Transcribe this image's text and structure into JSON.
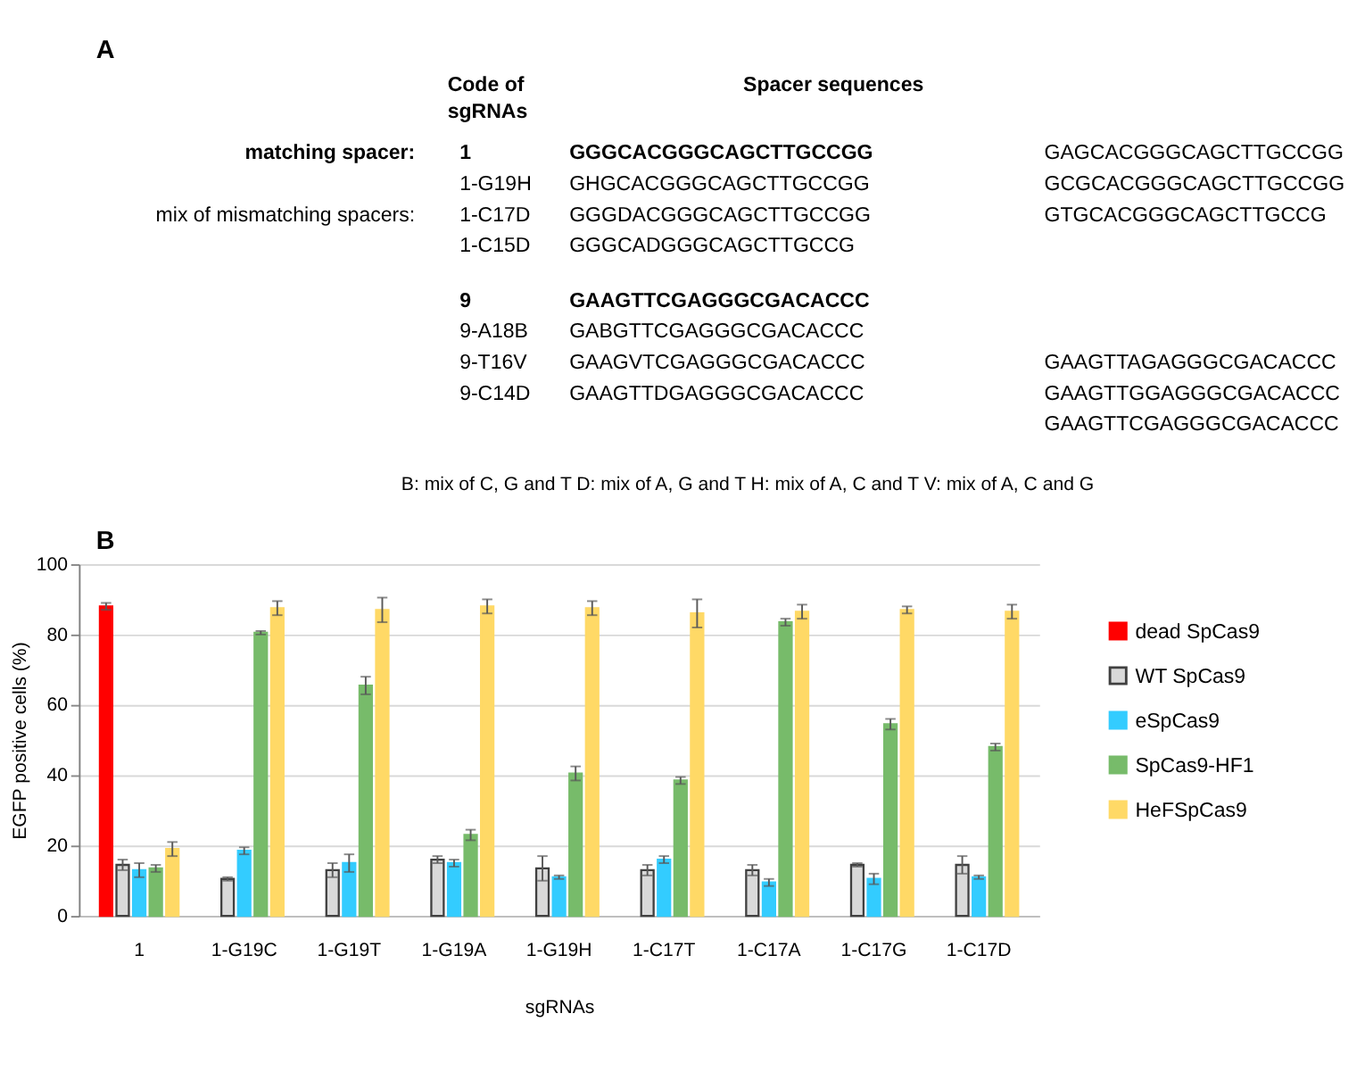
{
  "chart_data": {
    "type": "bar",
    "xlabel": "sgRNAs",
    "ylabel": "EGFP positive cells (%)",
    "categories": [
      "1",
      "1-G19C",
      "1-G19T",
      "1-G19A",
      "1-G19H",
      "1-C17T",
      "1-C17A",
      "1-C17G",
      "1-C17D"
    ],
    "series": [
      {
        "name": "dead SpCas9",
        "color": "#ff0000",
        "values": [
          88,
          null,
          null,
          null,
          null,
          null,
          null,
          null,
          null
        ],
        "errors": [
          1,
          null,
          null,
          null,
          null,
          null,
          null,
          null,
          null
        ]
      },
      {
        "name": "WT SpCas9",
        "color": "#d9d9d9",
        "values": [
          14.5,
          10.5,
          13,
          16,
          13.5,
          13,
          13,
          14.5,
          14.5
        ],
        "errors": [
          1.5,
          0.5,
          2,
          1,
          3.5,
          1.5,
          1.5,
          0.5,
          2.5
        ]
      },
      {
        "name": "eSpCas9",
        "color": "#33ccff",
        "values": [
          13,
          18.5,
          15,
          15,
          11,
          16,
          9.5,
          10.5,
          11
        ],
        "errors": [
          2,
          1,
          2.5,
          1,
          0.5,
          1,
          1,
          1.5,
          0.5
        ]
      },
      {
        "name": "SpCas9-HF1",
        "color": "#77bb6a",
        "values": [
          13.5,
          80.5,
          65.5,
          23,
          40.5,
          38.5,
          83.5,
          54.5,
          48
        ],
        "errors": [
          1,
          0.5,
          2.5,
          1.5,
          2,
          1,
          1,
          1.5,
          1
        ]
      },
      {
        "name": "HeFSpCas9",
        "color": "#ffd966",
        "values": [
          19,
          87.5,
          87,
          88,
          87.5,
          86,
          86.5,
          87,
          86.5
        ],
        "errors": [
          2,
          2,
          3.5,
          2,
          2,
          4,
          2,
          1,
          2
        ]
      }
    ],
    "ylim": [
      0,
      100
    ],
    "yticks": [
      0,
      20,
      40,
      60,
      80,
      100
    ],
    "grid": "y",
    "legend": "right",
    "annotations": [
      "A",
      "Code of",
      "sgRNAs",
      "Spacer sequences",
      "matching spacer:",
      "mix of mismatching spacers:",
      "1",
      "GGGCACGGGCAGCTTGCCGG",
      "1-G19H",
      "GHGCACGGGCAGCTTGCCGG",
      "1-C17D",
      "GGGDACGGGCAGCTTGCCGG",
      "1-C15D",
      "GGGCADGGGCAGCTTGCCG",
      "9",
      "GAAGTTCGAGGGCGACACCC",
      "9-A18B",
      "GABGTTCGAGGGCGACACCC",
      "9-T16V",
      "GAAGVTCGAGGGCGACACCC",
      "9-C14D",
      "GAAGTTDGAGGGCGACACCC",
      "GAGCACGGGCAGCTTGCCGG",
      "GCGCACGGGCAGCTTGCCGG",
      "GTGCACGGGCAGCTTGCCG",
      "GAAGTTAGAGGGCGACACCC",
      "GAAGTTGGAGGGCGACACCC",
      "GAAGTTCGAGGGCGACACCC",
      "B:  mix of C, G and T D: mix of A, G and T H: mix of A, C and T V: mix of A, C and G",
      "B"
    ]
  }
}
